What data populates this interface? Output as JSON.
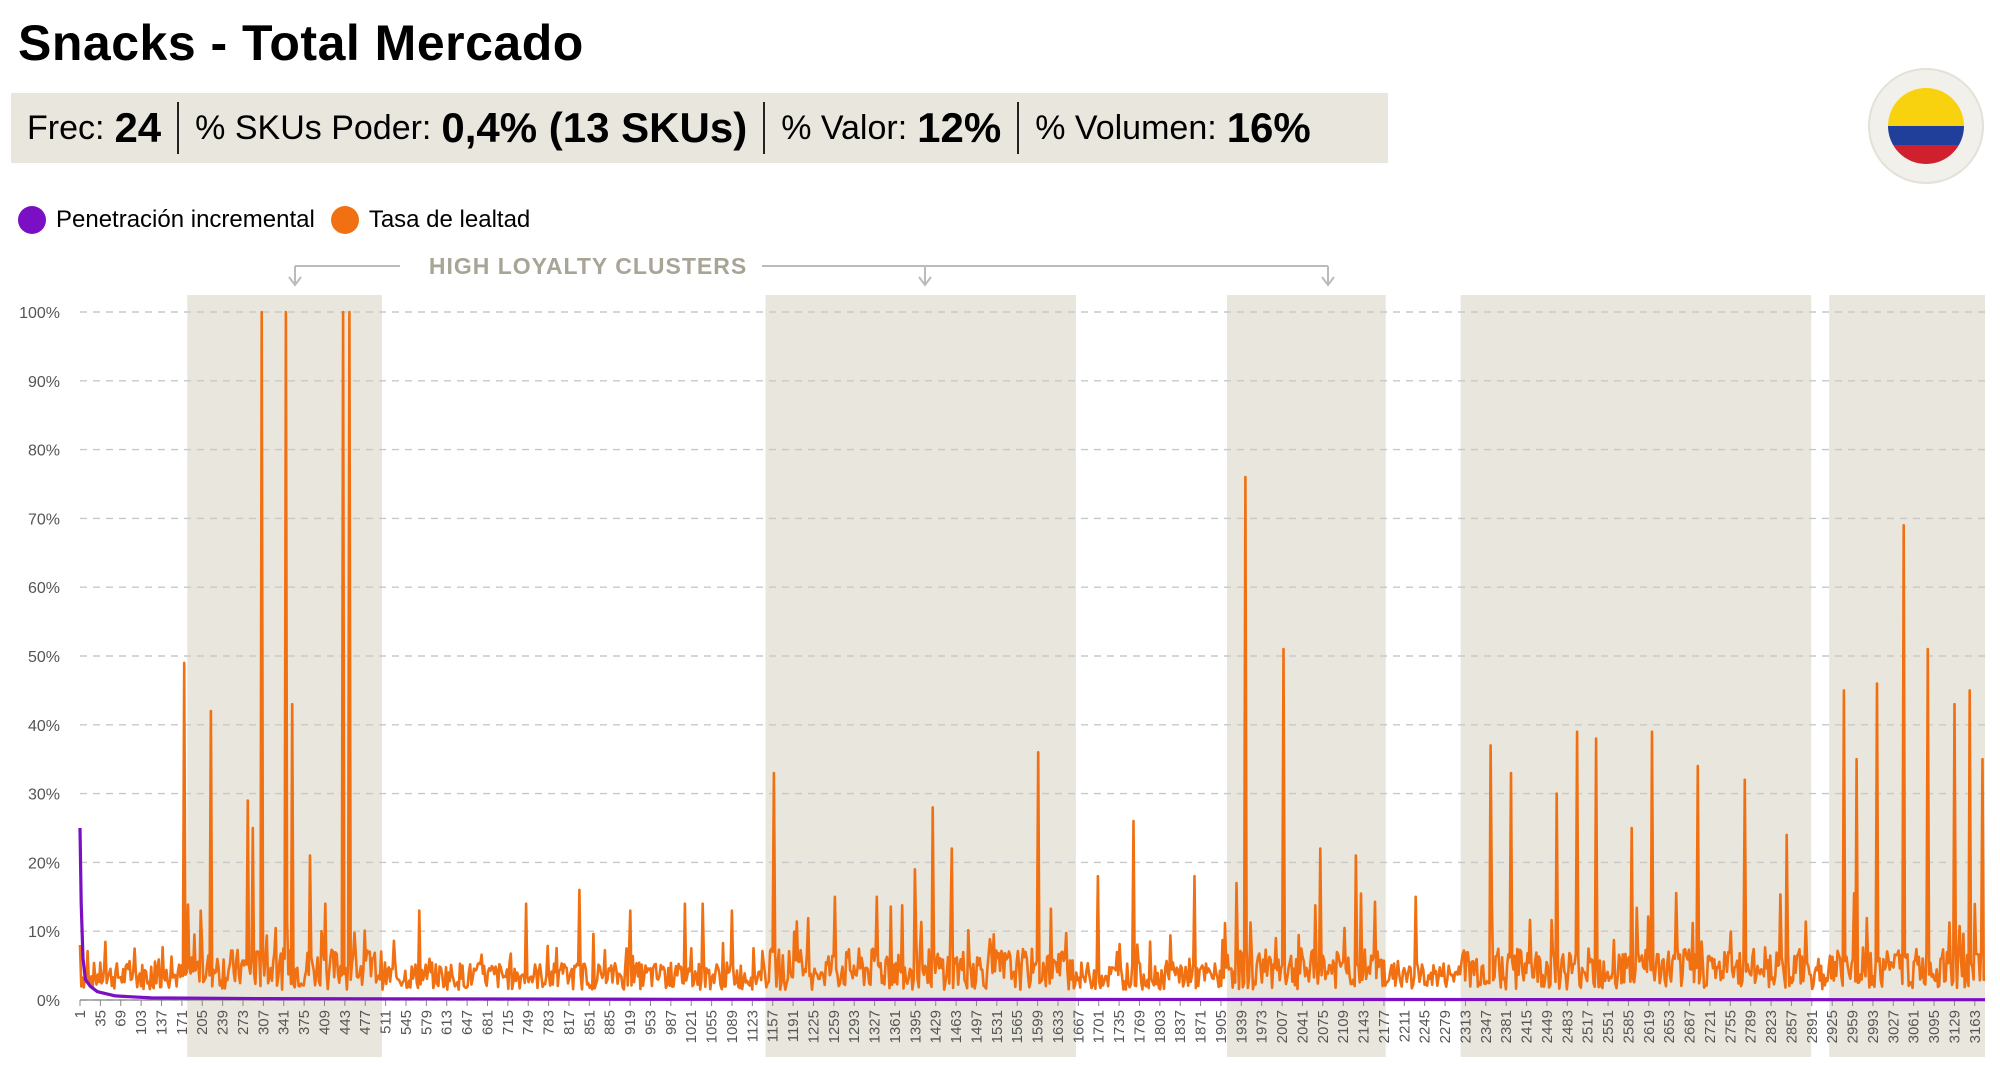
{
  "header": {
    "title": "Snacks - Total Mercado",
    "kpis": [
      {
        "label": "Frec:",
        "value": "24"
      },
      {
        "label": "% SKUs Poder:",
        "value": "0,4% (13 SKUs)"
      },
      {
        "label": "% Valor:",
        "value": "12%"
      },
      {
        "label": "% Volumen:",
        "value": "16%"
      }
    ],
    "flag_icon": "colombia-flag-icon"
  },
  "colors": {
    "incremental": "#7a0fc4",
    "loyalty": "#f07012",
    "cluster_band": "#e8e6dd",
    "grid": "#c8c8c8",
    "kpi_bg": "#e8e6dd"
  },
  "chart_data": {
    "type": "line",
    "cluster_label": "HIGH LOYALTY CLUSTERS",
    "legend_position": "top-left",
    "grid": true,
    "ylim": [
      0,
      100
    ],
    "y_ticks": [
      "0%",
      "10%",
      "20%",
      "30%",
      "40%",
      "50%",
      "60%",
      "70%",
      "80%",
      "90%",
      "100%"
    ],
    "x_range": [
      1,
      3180
    ],
    "x_ticks": [
      1,
      35,
      69,
      103,
      137,
      171,
      205,
      239,
      273,
      307,
      341,
      375,
      409,
      443,
      477,
      511,
      545,
      579,
      613,
      647,
      681,
      715,
      749,
      783,
      817,
      851,
      885,
      919,
      953,
      987,
      1021,
      1055,
      1089,
      1123,
      1157,
      1191,
      1225,
      1259,
      1293,
      1327,
      1361,
      1395,
      1429,
      1463,
      1497,
      1531,
      1565,
      1599,
      1633,
      1667,
      1701,
      1735,
      1769,
      1803,
      1837,
      1871,
      1905,
      1939,
      1973,
      2007,
      2041,
      2075,
      2109,
      2143,
      2177,
      2211,
      2245,
      2279,
      2313,
      2347,
      2381,
      2415,
      2449,
      2483,
      2517,
      2551,
      2585,
      2619,
      2653,
      2687,
      2721,
      2755,
      2789,
      2823,
      2857,
      2891,
      2925,
      2959,
      2993,
      3027,
      3061,
      3095,
      3129,
      3163
    ],
    "high_loyalty_clusters": [
      [
        180,
        505
      ],
      [
        1145,
        1663
      ],
      [
        1915,
        2180
      ],
      [
        2305,
        2890
      ],
      [
        2920,
        3180
      ]
    ],
    "series": [
      {
        "name": "Penetración incremental",
        "points": [
          [
            1,
            25
          ],
          [
            3,
            14
          ],
          [
            6,
            6
          ],
          [
            10,
            3
          ],
          [
            18,
            2
          ],
          [
            30,
            1.2
          ],
          [
            60,
            0.6
          ],
          [
            120,
            0.3
          ],
          [
            300,
            0.2
          ],
          [
            1000,
            0.1
          ],
          [
            3180,
            0.05
          ]
        ]
      },
      {
        "name": "Tasa de lealtad",
        "baseline_seed": 7,
        "peaks": [
          [
            1,
            8
          ],
          [
            175,
            49
          ],
          [
            220,
            42
          ],
          [
            280,
            29
          ],
          [
            290,
            25
          ],
          [
            305,
            100
          ],
          [
            345,
            100
          ],
          [
            355,
            43
          ],
          [
            385,
            21
          ],
          [
            410,
            14
          ],
          [
            440,
            100
          ],
          [
            450,
            100
          ],
          [
            568,
            13
          ],
          [
            835,
            16
          ],
          [
            745,
            14
          ],
          [
            920,
            13
          ],
          [
            1010,
            14
          ],
          [
            1040,
            14
          ],
          [
            1090,
            13
          ],
          [
            1158,
            33
          ],
          [
            1260,
            15
          ],
          [
            1330,
            15
          ],
          [
            1395,
            19
          ],
          [
            1425,
            28
          ],
          [
            1455,
            22
          ],
          [
            1600,
            36
          ],
          [
            1700,
            18
          ],
          [
            1760,
            26
          ],
          [
            1860,
            18
          ],
          [
            1930,
            17
          ],
          [
            1945,
            76
          ],
          [
            2010,
            51
          ],
          [
            2070,
            22
          ],
          [
            2130,
            21
          ],
          [
            2230,
            15
          ],
          [
            2355,
            37
          ],
          [
            2390,
            33
          ],
          [
            2465,
            30
          ],
          [
            2500,
            39
          ],
          [
            2530,
            38
          ],
          [
            2590,
            25
          ],
          [
            2625,
            39
          ],
          [
            2700,
            34
          ],
          [
            2780,
            32
          ],
          [
            2850,
            24
          ],
          [
            2945,
            45
          ],
          [
            2965,
            35
          ],
          [
            3000,
            46
          ],
          [
            3045,
            69
          ],
          [
            3085,
            51
          ],
          [
            3130,
            43
          ],
          [
            3155,
            45
          ],
          [
            3175,
            35
          ]
        ]
      }
    ]
  }
}
